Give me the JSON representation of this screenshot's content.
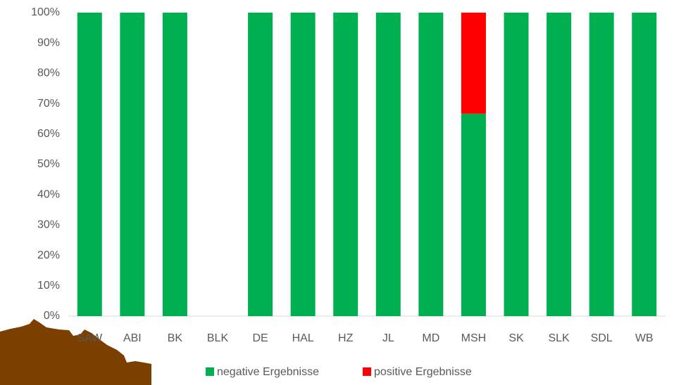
{
  "chart_data": {
    "type": "stacked-bar",
    "categories": [
      "SAW",
      "ABI",
      "BK",
      "BLK",
      "DE",
      "HAL",
      "HZ",
      "JL",
      "MD",
      "MSH",
      "SK",
      "SLK",
      "SDL",
      "WB"
    ],
    "series": [
      {
        "name": "negative Ergebnisse",
        "color": "#00b050",
        "values": [
          100,
          100,
          100,
          null,
          100,
          100,
          100,
          100,
          100,
          66.7,
          100,
          100,
          100,
          100
        ]
      },
      {
        "name": "positive Ergebnisse",
        "color": "#ff0000",
        "values": [
          0,
          0,
          0,
          null,
          0,
          0,
          0,
          0,
          0,
          33.3,
          0,
          0,
          0,
          0
        ]
      }
    ],
    "ylim": [
      0,
      100
    ],
    "yticks": [
      {
        "value": 0,
        "label": "0%"
      },
      {
        "value": 10,
        "label": "10%"
      },
      {
        "value": 20,
        "label": "20%"
      },
      {
        "value": 30,
        "label": "30%"
      },
      {
        "value": 40,
        "label": "40%"
      },
      {
        "value": 50,
        "label": "50%"
      },
      {
        "value": 60,
        "label": "60%"
      },
      {
        "value": 70,
        "label": "70%"
      },
      {
        "value": 80,
        "label": "80%"
      },
      {
        "value": 90,
        "label": "90%"
      },
      {
        "value": 100,
        "label": "100%"
      }
    ],
    "grid": false,
    "legend": "bottom"
  }
}
